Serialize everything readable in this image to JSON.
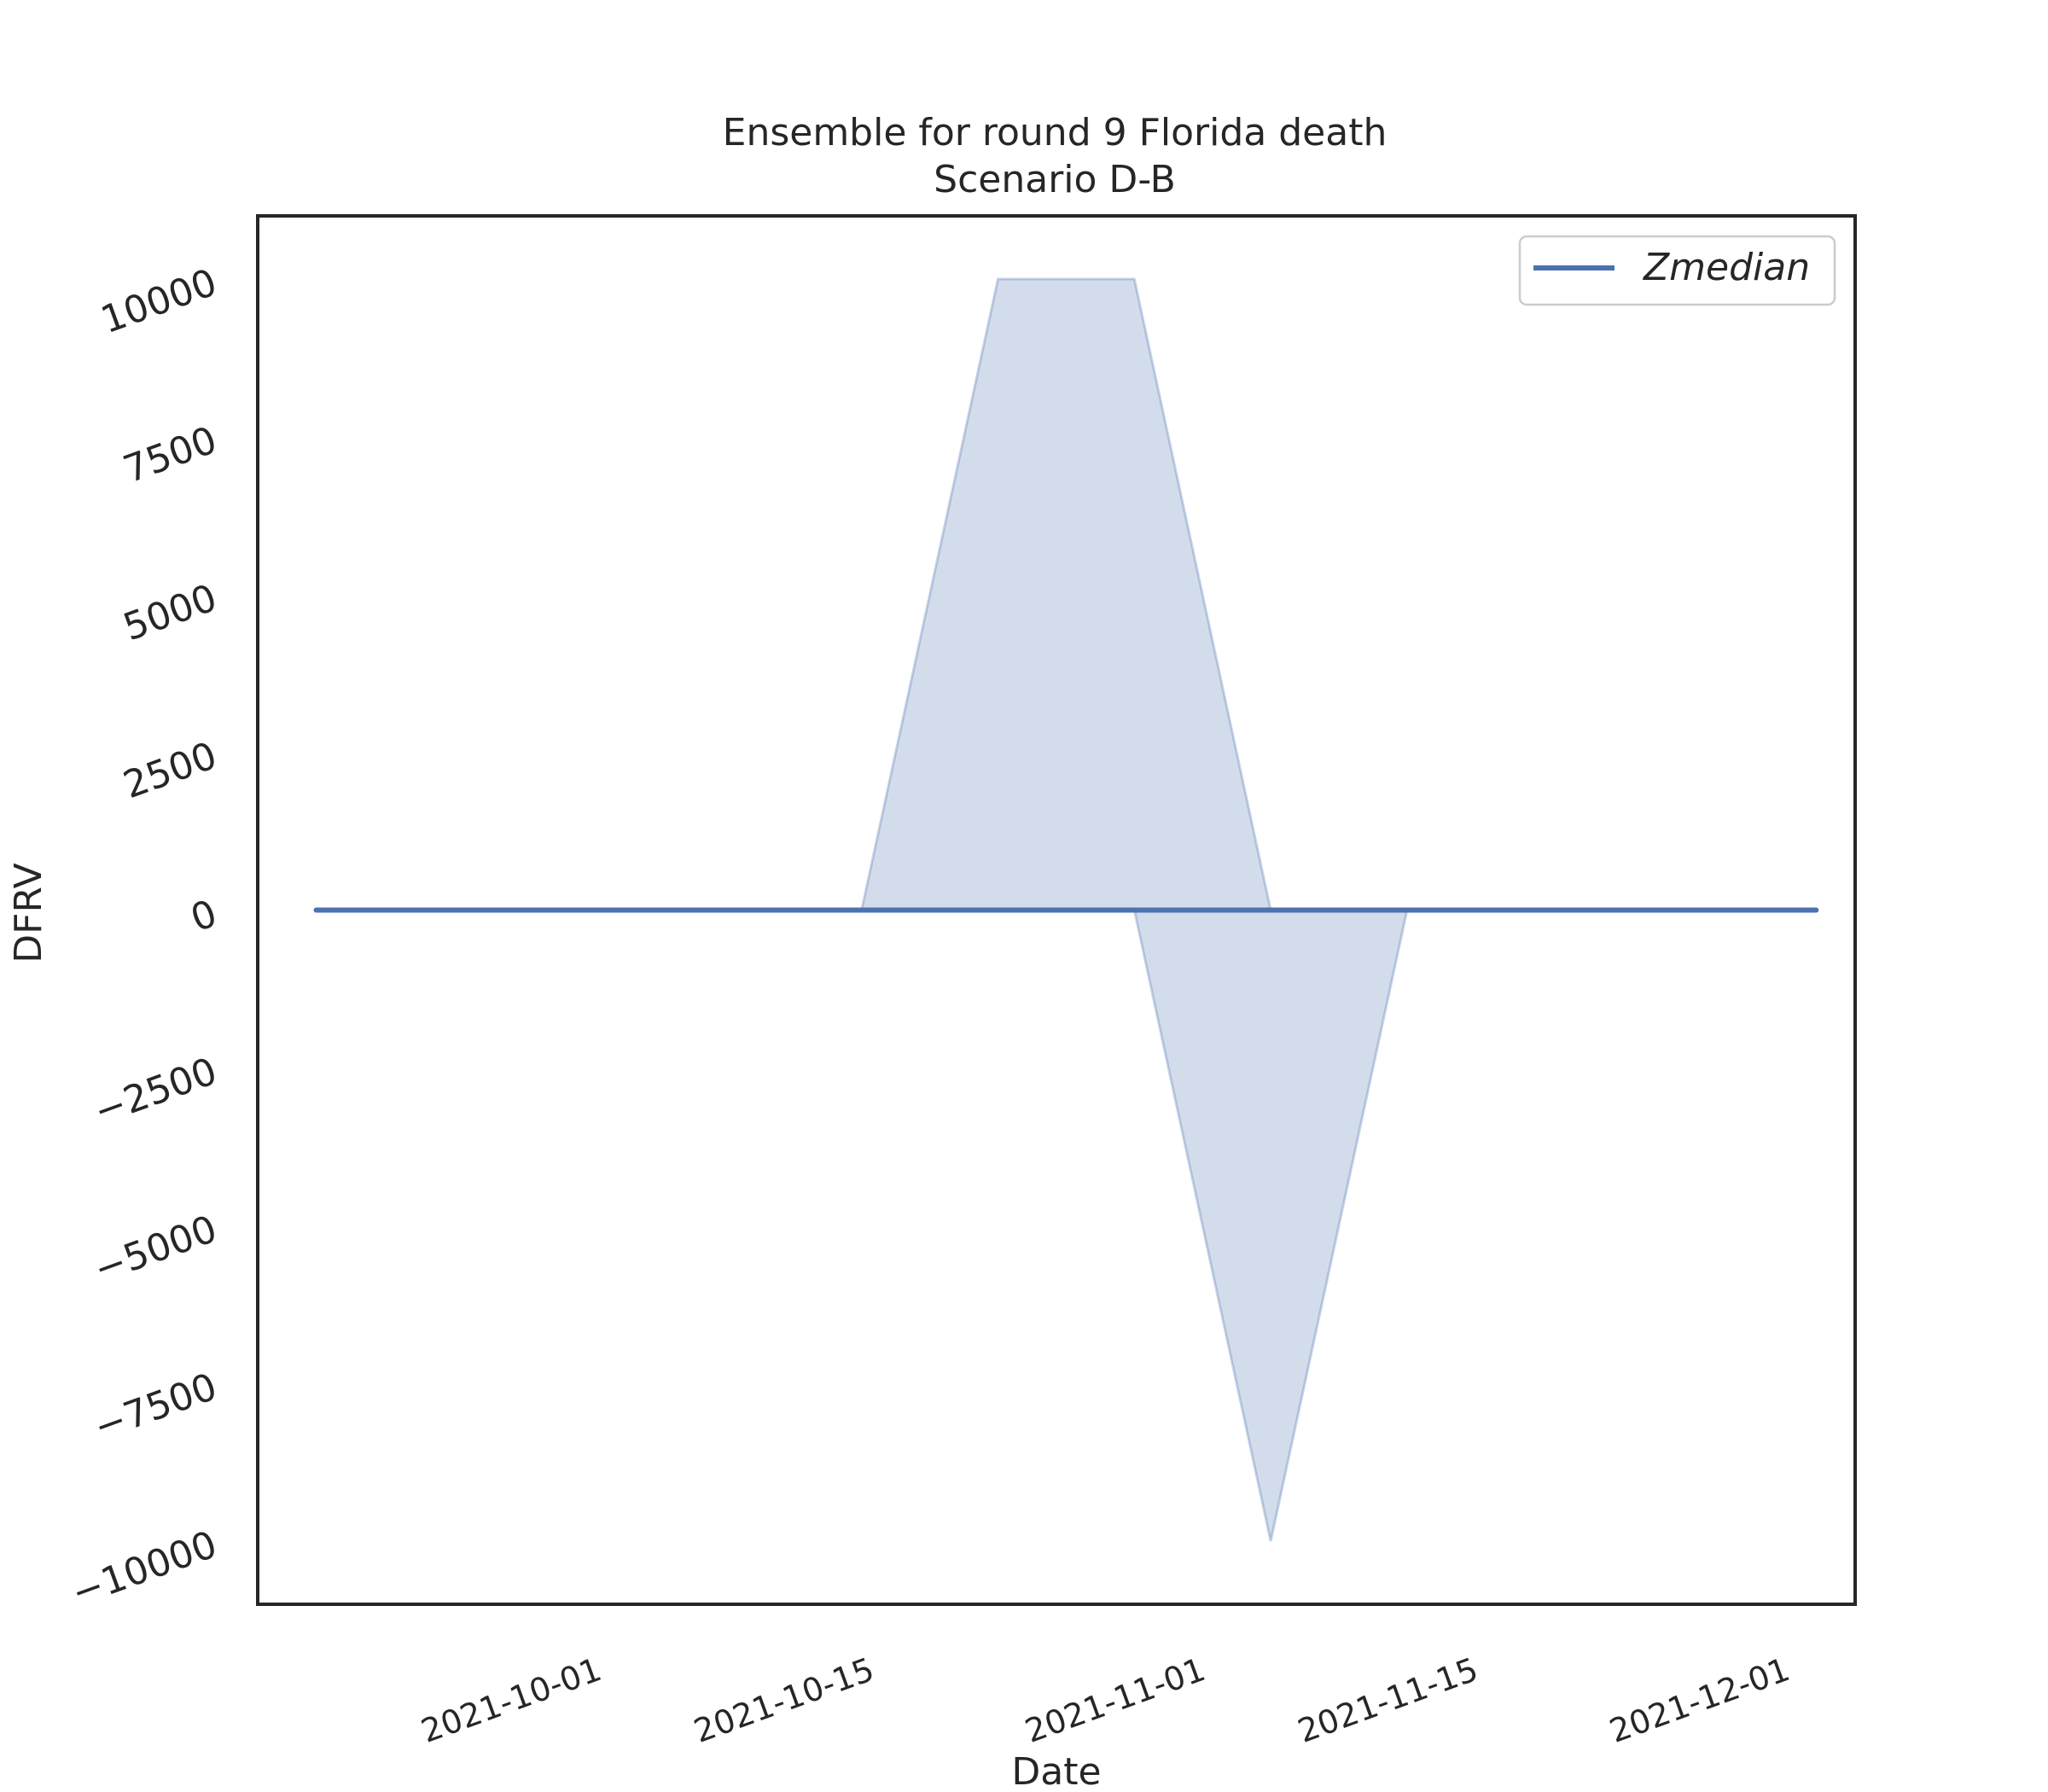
{
  "chart_data": {
    "type": "area",
    "title": "Ensemble for round 9 Florida death",
    "subtitle": "Scenario D-B",
    "xlabel": "Date",
    "ylabel": "DFRV",
    "x_ticks": [
      "2021-10-01",
      "2021-10-15",
      "2021-11-01",
      "2021-11-15",
      "2021-12-01"
    ],
    "y_ticks": [
      10000,
      7500,
      5000,
      2500,
      0,
      -2500,
      -5000,
      -7500,
      -10000
    ],
    "y_tick_labels": [
      "10000",
      "7500",
      "5000",
      "2500",
      "0",
      "−2500",
      "−5000",
      "−7500",
      "−10000"
    ],
    "xlim": [
      "2021-09-15",
      "2021-12-06"
    ],
    "ylim": [
      -11000,
      11000
    ],
    "grid": false,
    "legend_position": "upper right",
    "x": [
      "2021-09-18",
      "2021-09-25",
      "2021-10-02",
      "2021-10-09",
      "2021-10-16",
      "2021-10-23",
      "2021-10-30",
      "2021-11-06",
      "2021-11-13",
      "2021-11-20",
      "2021-11-27",
      "2021-12-04"
    ],
    "series": [
      {
        "name": "Zmedian",
        "color": "#4c72b0",
        "values": [
          0,
          0,
          0,
          0,
          0,
          0,
          0,
          0,
          0,
          0,
          0,
          0
        ]
      }
    ],
    "band": {
      "color": "#4c72b0",
      "opacity": 0.25,
      "lower": [
        0,
        0,
        0,
        0,
        0,
        0,
        0,
        -10000,
        0,
        0,
        0,
        0
      ],
      "upper": [
        0,
        0,
        0,
        0,
        0,
        10000,
        10000,
        0,
        0,
        0,
        0,
        0
      ]
    }
  }
}
